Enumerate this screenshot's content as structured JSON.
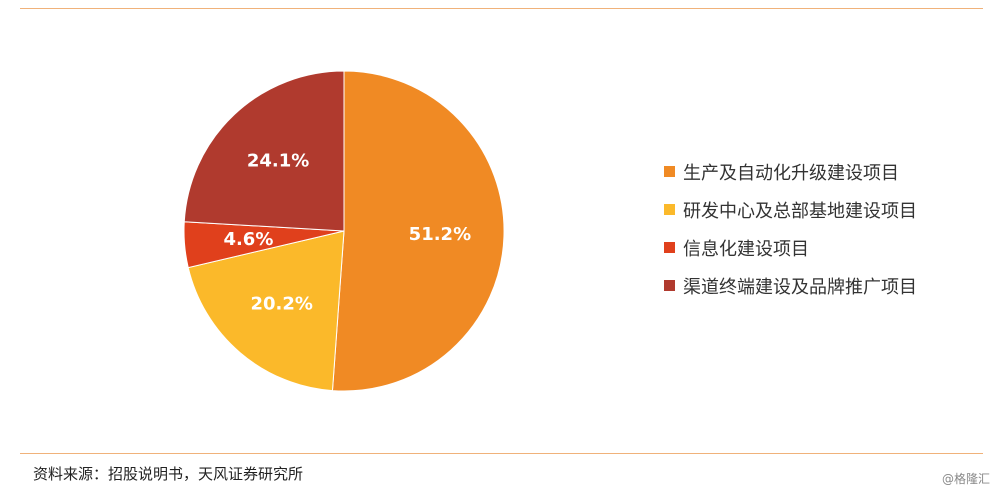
{
  "chart_data": {
    "type": "pie",
    "categories": [
      "生产及自动化升级建设项目",
      "研发中心及总部基地建设项目",
      "信息化建设项目",
      "渠道终端建设及品牌推广项目"
    ],
    "values": [
      51.2,
      20.2,
      4.6,
      24.1
    ],
    "labels": [
      "51.2%",
      "20.2%",
      "4.6%",
      "24.1%"
    ],
    "colors": [
      "#f08a24",
      "#fbb92a",
      "#e0401c",
      "#b03a2e"
    ],
    "start_angle": "12 o'clock",
    "direction": "clockwise",
    "legend_position": "right"
  },
  "footer": {
    "source": "资料来源：招股说明书，天风证券研究所",
    "watermark": "@格隆汇"
  }
}
